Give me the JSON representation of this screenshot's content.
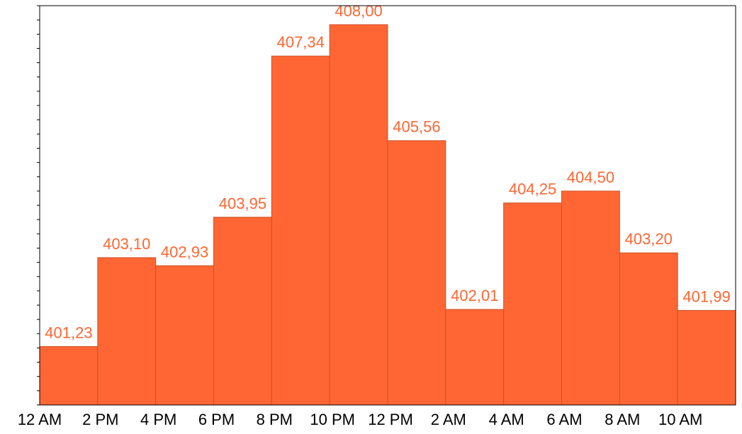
{
  "chart_data": {
    "type": "bar",
    "categories": [
      "12 AM",
      "2 PM",
      "4 PM",
      "6 PM",
      "8 PM",
      "10 PM",
      "12 PM",
      "2 AM",
      "4 AM",
      "6 AM",
      "8 AM",
      "10 AM"
    ],
    "values": [
      401.23,
      403.1,
      402.93,
      403.95,
      407.34,
      408.0,
      405.56,
      402.01,
      404.25,
      404.5,
      403.2,
      401.99
    ],
    "data_labels": [
      "401,23",
      "403,10",
      "402,93",
      "403,95",
      "407,34",
      "408,00",
      "405,56",
      "402,01",
      "404,25",
      "404,50",
      "403,20",
      "401,99"
    ],
    "title": "",
    "xlabel": "",
    "ylabel": "",
    "ylim": [
      400.0,
      408.4
    ],
    "grid": false,
    "legend": "none",
    "colors": {
      "bar": "#ff6633",
      "bar_edge": "#c9542a",
      "label": "#ff6633",
      "axis": "#000000"
    }
  }
}
